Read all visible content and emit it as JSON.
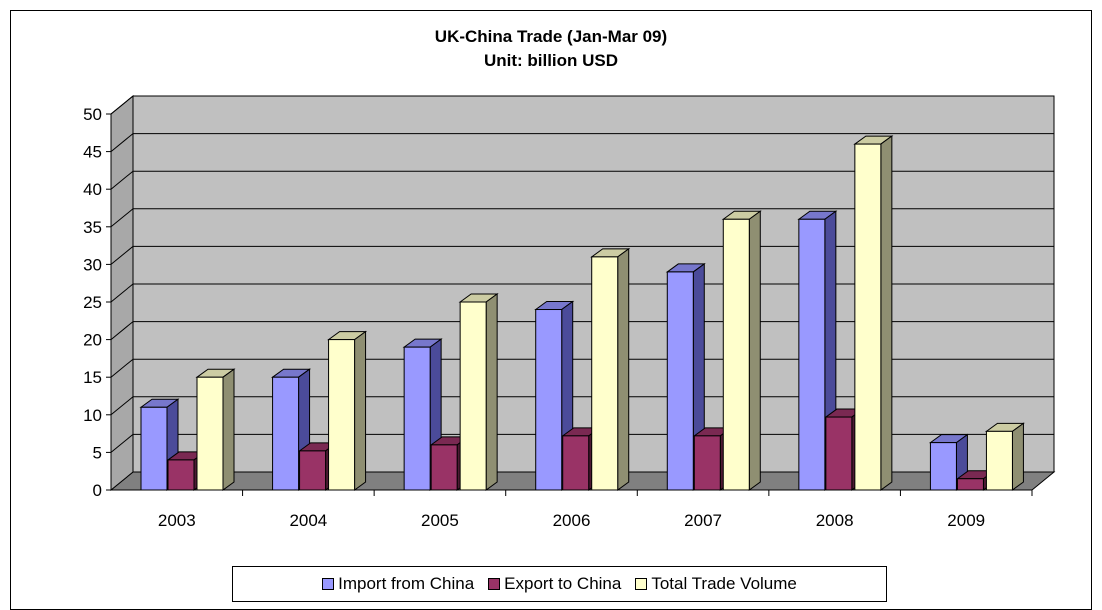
{
  "chart_data": {
    "type": "bar",
    "title": "UK-China Trade (Jan-Mar 09)",
    "subtitle": "Unit: billion USD",
    "categories": [
      "2003",
      "2004",
      "2005",
      "2006",
      "2007",
      "2008",
      "2009"
    ],
    "series": [
      {
        "name": "Import from China",
        "values": [
          11,
          15,
          19,
          24,
          29,
          36,
          6.3
        ],
        "color": "#9999ff",
        "side": "#4b4b9a",
        "top": "#7777cc"
      },
      {
        "name": "Export to China",
        "values": [
          4,
          5.2,
          6,
          7.2,
          7.2,
          9.7,
          1.5
        ],
        "color": "#993366",
        "side": "#4d1a33",
        "top": "#7a2952"
      },
      {
        "name": "Total Trade Volume",
        "values": [
          15,
          20,
          25,
          31,
          36,
          46,
          7.8
        ],
        "color": "#ffffcc",
        "side": "#8f8f72",
        "top": "#cccca3"
      }
    ],
    "ylim": [
      0,
      50
    ],
    "yticks": [
      "0",
      "5",
      "10",
      "15",
      "20",
      "25",
      "30",
      "35",
      "40",
      "45",
      "50"
    ],
    "grid": true,
    "legend_position": "bottom",
    "wall_color": "#c0c0c0",
    "floor_color": "#808080"
  }
}
